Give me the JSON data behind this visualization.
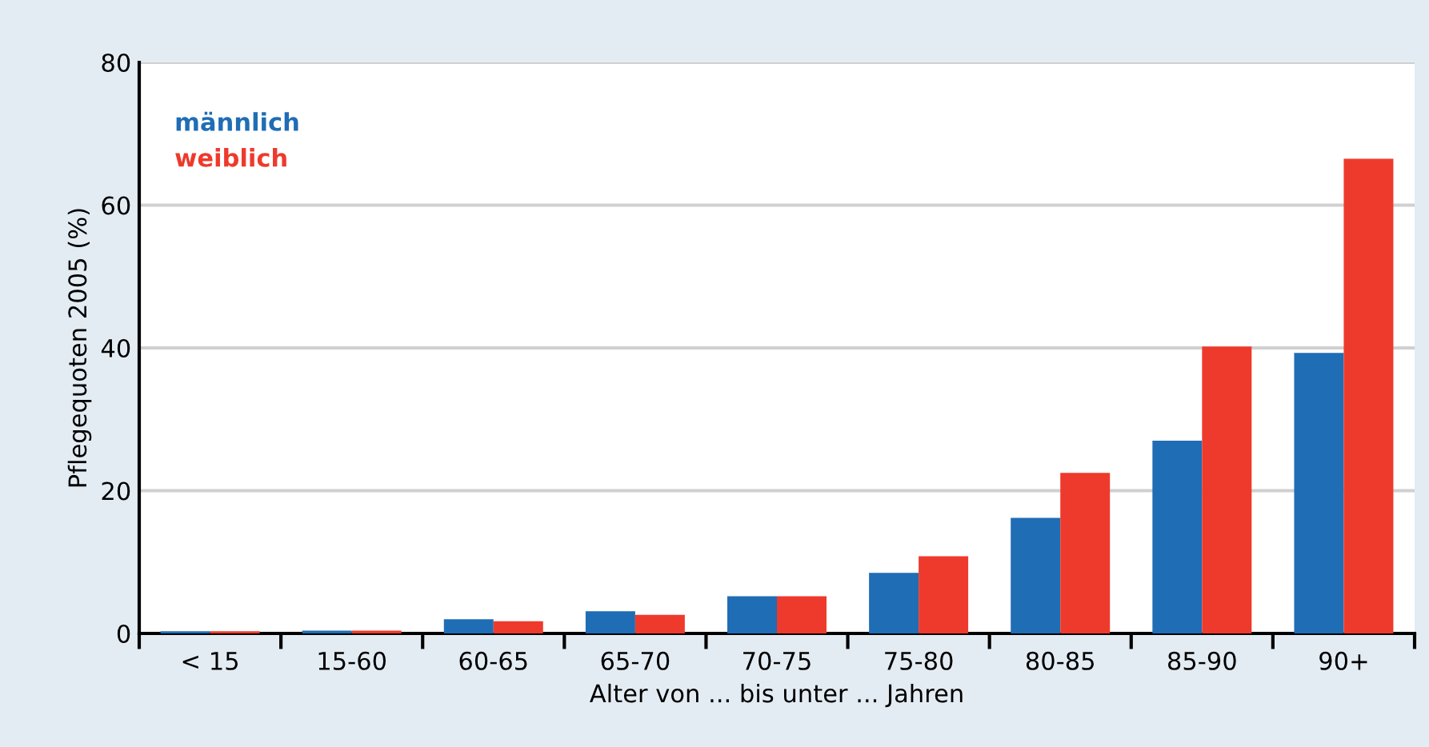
{
  "chart_data": {
    "type": "bar",
    "categories": [
      "< 15",
      "15-60",
      "60-65",
      "65-70",
      "70-75",
      "75-80",
      "80-85",
      "85-90",
      "90+"
    ],
    "series": [
      {
        "name": "männlich",
        "color": "#1f6db5",
        "values": [
          0.3,
          0.4,
          2.0,
          3.1,
          5.2,
          8.5,
          16.2,
          27.0,
          39.3
        ]
      },
      {
        "name": "weiblich",
        "color": "#ee3a2c",
        "values": [
          0.3,
          0.4,
          1.7,
          2.6,
          5.2,
          10.8,
          22.5,
          40.2,
          66.5
        ]
      }
    ],
    "xlabel": "Alter von ... bis unter ... Jahren",
    "ylabel": "Pflegequoten 2005 (%)",
    "ylim": [
      0,
      80
    ],
    "yticks": [
      0,
      20,
      40,
      60,
      80
    ],
    "grid": "y",
    "legend": "top left"
  }
}
